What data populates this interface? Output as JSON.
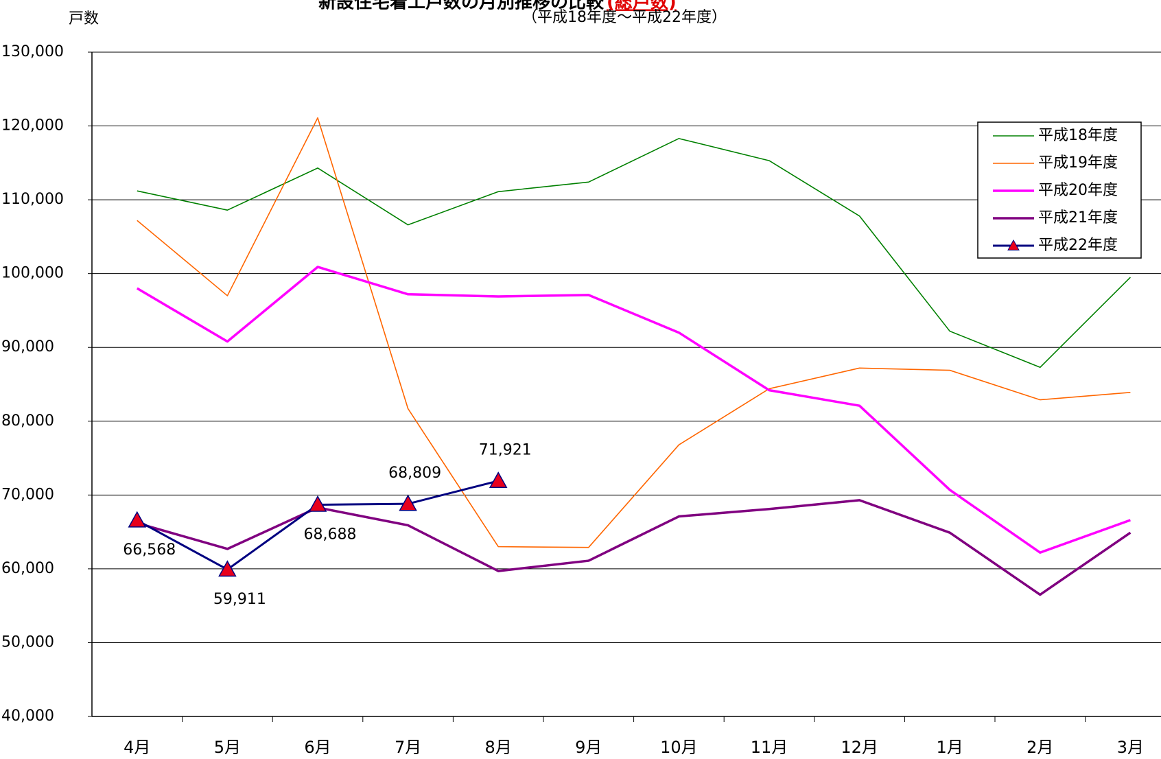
{
  "chart_data": {
    "type": "line",
    "title": "新設住宅着工戸数の月別推移の比較",
    "title_note": "(総戸数)",
    "subtitle": "（平成18年度～平成22年度）",
    "y_label": "戸数",
    "categories": [
      "4月",
      "5月",
      "6月",
      "7月",
      "8月",
      "9月",
      "10月",
      "11月",
      "12月",
      "1月",
      "2月",
      "3月"
    ],
    "ylim": [
      40000,
      130000
    ],
    "yticks": [
      {
        "value": 40000,
        "label": "40,000"
      },
      {
        "value": 50000,
        "label": "50,000"
      },
      {
        "value": 60000,
        "label": "60,000"
      },
      {
        "value": 70000,
        "label": "70,000"
      },
      {
        "value": 80000,
        "label": "80,000"
      },
      {
        "value": 90000,
        "label": "90,000"
      },
      {
        "value": 100000,
        "label": "100,000"
      },
      {
        "value": 110000,
        "label": "110,000"
      },
      {
        "value": 120000,
        "label": "120,000"
      },
      {
        "value": 130000,
        "label": "130,000"
      }
    ],
    "grid": true,
    "legend": "upper right",
    "series": [
      {
        "name": "平成18年度",
        "color": "#008000",
        "line_width": 1.6,
        "values": [
          111200,
          108600,
          114300,
          106600,
          111100,
          112400,
          118300,
          115300,
          107800,
          92200,
          87300,
          99500
        ]
      },
      {
        "name": "平成19年度",
        "color": "#ff6600",
        "line_width": 1.6,
        "values": [
          107200,
          97000,
          121100,
          81700,
          63000,
          62900,
          76800,
          84400,
          87200,
          86900,
          82900,
          83900
        ]
      },
      {
        "name": "平成20年度",
        "color": "#ff00ff",
        "line_width": 3.5,
        "values": [
          98000,
          90800,
          100900,
          97200,
          96900,
          97100,
          92000,
          84200,
          82100,
          70700,
          62200,
          66600
        ]
      },
      {
        "name": "平成21年度",
        "color": "#800080",
        "line_width": 3.5,
        "values": [
          66200,
          62700,
          68300,
          65900,
          59700,
          61100,
          67100,
          68100,
          69300,
          64900,
          56500,
          64900
        ]
      },
      {
        "name": "平成22年度",
        "color": "#000080",
        "line_width": 3,
        "marker": "triangle",
        "marker_color": "#e8001c",
        "values": [
          66568,
          59911,
          68688,
          68809,
          71921,
          null,
          null,
          null,
          null,
          null,
          null,
          null
        ],
        "value_labels": [
          "66,568",
          "59,911",
          "68,688",
          "68,809",
          "71,921",
          null,
          null,
          null,
          null,
          null,
          null,
          null
        ]
      }
    ]
  }
}
